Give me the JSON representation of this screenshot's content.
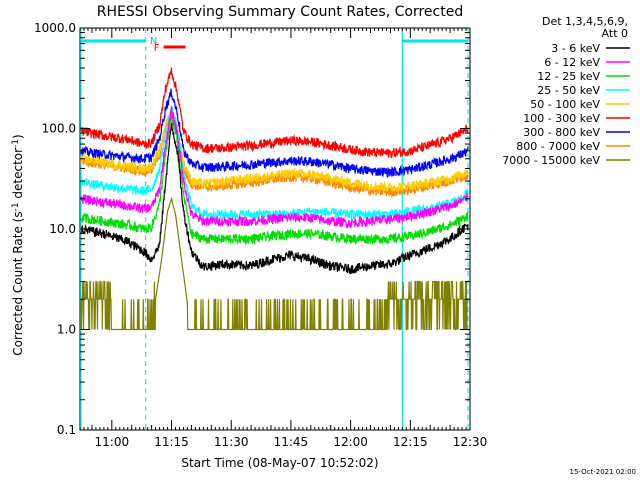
{
  "chart_data": {
    "type": "line",
    "title": "RHESSI Observing Summary Count Rates, Corrected",
    "xlabel": "Start Time (08-May-07 10:52:02)",
    "ylabel_main": "Corrected Count Rate (s",
    "ylabel_sup1": "-1",
    "ylabel_mid": " detector",
    "ylabel_sup2": "-1",
    "ylabel_end": ")",
    "yscale": "log",
    "ylim": [
      0.1,
      1000
    ],
    "xlim_minutes": [
      52.0,
      150.0
    ],
    "x_ticks": [
      {
        "label": "11:00",
        "t": 60
      },
      {
        "label": "11:15",
        "t": 75
      },
      {
        "label": "11:30",
        "t": 90
      },
      {
        "label": "11:45",
        "t": 105
      },
      {
        "label": "12:00",
        "t": 120
      },
      {
        "label": "12:15",
        "t": 135
      },
      {
        "label": "12:30",
        "t": 150
      }
    ],
    "y_ticks": [
      {
        "label": "0.1",
        "v": 0.1
      },
      {
        "label": "1.0",
        "v": 1
      },
      {
        "label": "10.0",
        "v": 10
      },
      {
        "label": "100.0",
        "v": 100
      },
      {
        "label": "1000.0",
        "v": 1000
      }
    ],
    "legend_header": [
      "Det 1,3,4,5,6,9,",
      "Att 0"
    ],
    "series": [
      {
        "name": "3 - 6 keV",
        "color": "#000000",
        "x": [
          52.2,
          58,
          64,
          68,
          70,
          72,
          73.5,
          75,
          76.5,
          78,
          80,
          83,
          88,
          95,
          100,
          105,
          110,
          115,
          120,
          125,
          130,
          135,
          140,
          145,
          148,
          149.5
        ],
        "y": [
          10,
          9,
          7.5,
          6,
          5,
          7,
          30,
          110,
          60,
          15,
          6,
          4.2,
          4.5,
          4.3,
          5,
          5.5,
          5,
          4.3,
          4,
          4.3,
          4.5,
          5.5,
          6.5,
          8,
          10,
          11
        ]
      },
      {
        "name": "6 - 12 keV",
        "color": "#ff00ff",
        "x": [
          52.2,
          58,
          64,
          68,
          70,
          72,
          73.5,
          75,
          76.5,
          78,
          80,
          83,
          88,
          95,
          100,
          105,
          110,
          115,
          120,
          125,
          130,
          135,
          140,
          145,
          148,
          149.5
        ],
        "y": [
          20,
          18.5,
          17,
          16,
          16.5,
          25,
          70,
          150,
          90,
          30,
          14,
          12,
          12,
          12,
          12.5,
          13,
          13,
          12,
          11.5,
          12,
          12.5,
          13.5,
          15,
          17,
          19,
          21
        ]
      },
      {
        "name": "12 - 25 keV",
        "color": "#00dd00",
        "x": [
          52.2,
          58,
          64,
          68,
          70,
          72,
          73.5,
          75,
          76.5,
          78,
          80,
          83,
          88,
          95,
          100,
          105,
          110,
          115,
          120,
          125,
          130,
          135,
          140,
          145,
          148,
          149.5
        ],
        "y": [
          13,
          12,
          11,
          10,
          10.5,
          18,
          55,
          130,
          75,
          22,
          9,
          8,
          8,
          8,
          8.5,
          9,
          9,
          8.5,
          8,
          8,
          8,
          8.5,
          9.5,
          11,
          12.5,
          14
        ]
      },
      {
        "name": "25 - 50 keV",
        "color": "#00ffff",
        "x": [
          52.2,
          58,
          64,
          68,
          70,
          72,
          73.5,
          75,
          76.5,
          78,
          80,
          83,
          88,
          95,
          100,
          105,
          110,
          115,
          120,
          125,
          130,
          135,
          140,
          145,
          148,
          149.5
        ],
        "y": [
          30,
          27,
          25,
          24,
          25,
          40,
          90,
          160,
          100,
          35,
          17,
          14,
          14,
          14,
          14,
          14,
          15,
          14.5,
          14,
          14,
          14,
          15,
          16,
          18,
          20,
          24
        ]
      },
      {
        "name": "50 - 100 keV",
        "color": "#ffcc00",
        "x": [
          52.2,
          58,
          64,
          68,
          70,
          72,
          73.5,
          75,
          76.5,
          78,
          80,
          83,
          88,
          95,
          100,
          105,
          110,
          115,
          120,
          125,
          130,
          135,
          140,
          145,
          148,
          149.5
        ],
        "y": [
          50,
          46,
          42,
          40,
          42,
          60,
          110,
          150,
          100,
          45,
          30,
          28,
          30,
          32,
          34,
          36,
          35,
          32,
          29,
          27,
          26,
          27,
          29,
          32,
          35,
          38
        ]
      },
      {
        "name": "100 - 300 keV",
        "color": "#ff0000",
        "x": [
          52.2,
          58,
          64,
          68,
          70,
          72,
          73.5,
          75,
          76.5,
          78,
          80,
          83,
          88,
          95,
          100,
          105,
          110,
          115,
          120,
          125,
          130,
          135,
          140,
          145,
          148,
          149.5
        ],
        "y": [
          95,
          85,
          78,
          70,
          72,
          110,
          250,
          380,
          220,
          95,
          70,
          64,
          64,
          68,
          72,
          76,
          74,
          68,
          62,
          58,
          57,
          60,
          68,
          80,
          92,
          100
        ]
      },
      {
        "name": "300 - 800 keV",
        "color": "#0000ff",
        "x": [
          52.2,
          58,
          64,
          68,
          70,
          72,
          73.5,
          75,
          76.5,
          78,
          80,
          83,
          88,
          95,
          100,
          105,
          110,
          115,
          120,
          125,
          130,
          135,
          140,
          145,
          148,
          149.5
        ],
        "y": [
          60,
          55,
          52,
          50,
          52,
          80,
          160,
          230,
          140,
          60,
          45,
          41,
          42,
          44,
          46,
          48,
          47,
          44,
          40,
          38,
          37,
          39,
          44,
          50,
          56,
          60
        ]
      },
      {
        "name": "800 - 7000 keV",
        "color": "#ff8800",
        "x": [
          52.2,
          58,
          64,
          68,
          70,
          72,
          73.5,
          75,
          76.5,
          78,
          80,
          83,
          88,
          95,
          100,
          105,
          110,
          115,
          120,
          125,
          130,
          135,
          140,
          145,
          148,
          149.5
        ],
        "y": [
          48,
          44,
          40,
          38,
          39,
          55,
          100,
          140,
          95,
          40,
          28,
          26,
          27,
          29,
          31,
          33,
          32,
          29,
          26,
          24,
          23.5,
          24.5,
          27,
          30,
          33,
          35
        ]
      },
      {
        "name": "7000 - 15000 keV",
        "color": "#808000",
        "x": [
          52.2,
          55,
          58,
          61,
          64,
          67,
          69,
          71,
          72.5,
          74,
          75,
          76,
          77.5,
          79,
          80.5,
          82,
          86,
          90,
          95,
          100,
          105,
          110,
          115,
          120,
          125,
          127,
          130,
          135,
          140,
          145,
          148,
          149.5
        ],
        "y": [
          3,
          2,
          2.5,
          1.5,
          1.5,
          1.2,
          1.3,
          2,
          5,
          15,
          20,
          14,
          5,
          1.8,
          1,
          1,
          1,
          1,
          1,
          1,
          1,
          1,
          1,
          1,
          1,
          1.5,
          2,
          2.5,
          2,
          2,
          3,
          3
        ]
      }
    ],
    "annotations": {
      "attenuator_label": "N",
      "flare_label": "F",
      "night_intervals_minutes": [
        [
          52.2,
          68.5
        ],
        [
          133.0,
          149.5
        ]
      ],
      "flare_interval_minutes": [
        73.0,
        78.5
      ],
      "vlines_dashed_minutes": [
        68.5,
        149.5
      ],
      "vlines_solid_minutes": [
        52.2,
        133.0
      ]
    },
    "footer": "15-Oct-2021 02:00"
  }
}
